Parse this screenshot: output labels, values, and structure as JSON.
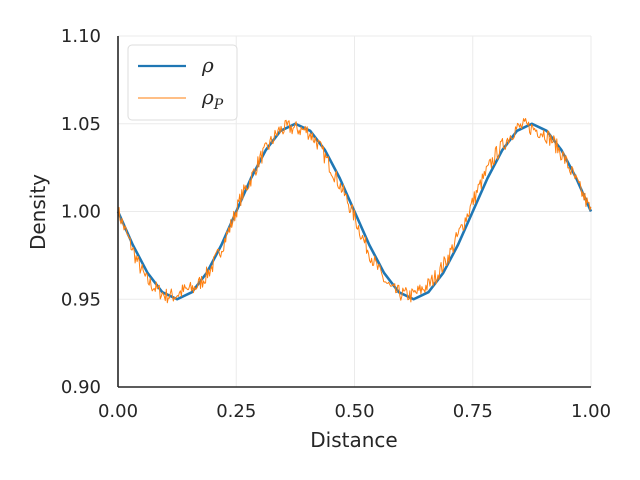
{
  "chart_data": {
    "type": "line",
    "xlabel": "Distance",
    "ylabel": "Density",
    "xlim": [
      0.0,
      1.0
    ],
    "ylim": [
      0.9,
      1.1
    ],
    "x_ticks": [
      "0.00",
      "0.25",
      "0.50",
      "0.75",
      "1.00"
    ],
    "y_ticks": [
      "0.90",
      "0.95",
      "1.00",
      "1.05",
      "1.10"
    ],
    "grid": true,
    "legend_position": "top-left",
    "series": [
      {
        "name": "ρ",
        "color": "#1f77b4",
        "style": "smooth",
        "x": [
          0.0,
          0.03125,
          0.0625,
          0.09375,
          0.125,
          0.15625,
          0.1875,
          0.21875,
          0.25,
          0.28125,
          0.3125,
          0.34375,
          0.375,
          0.40625,
          0.4375,
          0.46875,
          0.5,
          0.53125,
          0.5625,
          0.59375,
          0.625,
          0.65625,
          0.6875,
          0.71875,
          0.75,
          0.78125,
          0.8125,
          0.84375,
          0.875,
          0.90625,
          0.9375,
          0.96875,
          1.0
        ],
        "values": [
          1.0,
          0.981,
          0.965,
          0.954,
          0.95,
          0.954,
          0.965,
          0.981,
          1.0,
          1.019,
          1.035,
          1.046,
          1.05,
          1.046,
          1.035,
          1.019,
          1.0,
          0.981,
          0.965,
          0.954,
          0.95,
          0.954,
          0.965,
          0.981,
          1.0,
          1.019,
          1.035,
          1.046,
          1.05,
          1.046,
          1.035,
          1.019,
          1.0
        ]
      },
      {
        "name": "ρP",
        "color": "#ff7f0e",
        "style": "noisy",
        "x": [
          0.0,
          0.02,
          0.04,
          0.06,
          0.08,
          0.1,
          0.12,
          0.14,
          0.16,
          0.18,
          0.2,
          0.22,
          0.24,
          0.26,
          0.28,
          0.3,
          0.32,
          0.34,
          0.36,
          0.38,
          0.4,
          0.42,
          0.44,
          0.46,
          0.48,
          0.5,
          0.52,
          0.54,
          0.56,
          0.58,
          0.6,
          0.62,
          0.64,
          0.66,
          0.68,
          0.7,
          0.72,
          0.74,
          0.76,
          0.78,
          0.8,
          0.82,
          0.84,
          0.86,
          0.88,
          0.9,
          0.92,
          0.94,
          0.96,
          0.98,
          1.0
        ],
        "values": [
          1.0,
          0.986,
          0.972,
          0.961,
          0.956,
          0.952,
          0.952,
          0.955,
          0.956,
          0.961,
          0.969,
          0.98,
          0.993,
          1.008,
          1.018,
          1.03,
          1.038,
          1.046,
          1.048,
          1.047,
          1.046,
          1.04,
          1.03,
          1.02,
          1.009,
          0.997,
          0.983,
          0.972,
          0.962,
          0.955,
          0.953,
          0.952,
          0.955,
          0.959,
          0.966,
          0.975,
          0.987,
          0.999,
          1.012,
          1.023,
          1.033,
          1.04,
          1.047,
          1.049,
          1.047,
          1.045,
          1.04,
          1.032,
          1.022,
          1.011,
          1.0
        ]
      }
    ]
  }
}
